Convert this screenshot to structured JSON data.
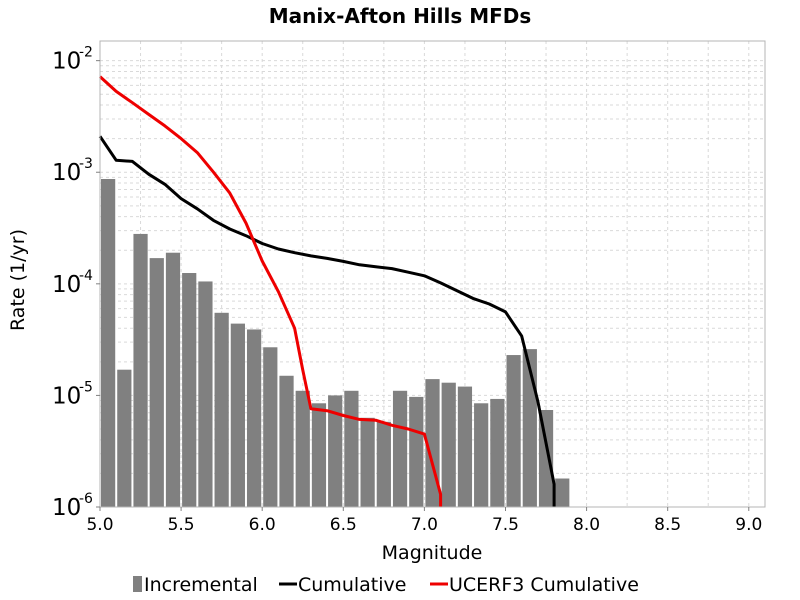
{
  "chart_data": {
    "type": "bar",
    "title": "Manix-Afton Hills MFDs",
    "xlabel": "Magnitude",
    "ylabel": "Rate (1/yr)",
    "xlim": [
      5.0,
      9.1
    ],
    "ylim": [
      1e-06,
      0.015
    ],
    "y_scale": "log",
    "grid": true,
    "legend_position": "bottom",
    "x_ticks": [
      "5.0",
      "5.5",
      "6.0",
      "6.5",
      "7.0",
      "7.5",
      "8.0",
      "8.5",
      "9.0"
    ],
    "y_ticks": [
      {
        "base": "10",
        "exp": "-2"
      },
      {
        "base": "10",
        "exp": "-3"
      },
      {
        "base": "10",
        "exp": "-4"
      },
      {
        "base": "10",
        "exp": "-5"
      },
      {
        "base": "10",
        "exp": "-6"
      }
    ],
    "series": [
      {
        "name": "Incremental",
        "type": "bar",
        "color": "#808080",
        "bin_width": 0.1,
        "x": [
          5.05,
          5.15,
          5.25,
          5.35,
          5.45,
          5.55,
          5.65,
          5.75,
          5.85,
          5.95,
          6.05,
          6.15,
          6.25,
          6.35,
          6.45,
          6.55,
          6.65,
          6.75,
          6.85,
          6.95,
          7.05,
          7.15,
          7.25,
          7.35,
          7.45,
          7.55,
          7.65,
          7.75,
          7.85
        ],
        "values": [
          0.00087,
          1.7e-05,
          0.00028,
          0.00017,
          0.00019,
          0.000125,
          0.000105,
          5.5e-05,
          4.4e-05,
          3.9e-05,
          2.7e-05,
          1.5e-05,
          1.1e-05,
          8.5e-06,
          1e-05,
          1.1e-05,
          6.3e-06,
          5.8e-06,
          1.1e-05,
          9.7e-06,
          1.4e-05,
          1.3e-05,
          1.2e-05,
          8.5e-06,
          9.3e-06,
          2.3e-05,
          2.6e-05,
          7.4e-06,
          1.8e-06
        ]
      },
      {
        "name": "Cumulative",
        "type": "line",
        "color": "#000000",
        "x": [
          5.0,
          5.1,
          5.2,
          5.3,
          5.4,
          5.5,
          5.6,
          5.7,
          5.8,
          5.9,
          6.0,
          6.1,
          6.2,
          6.3,
          6.4,
          6.5,
          6.6,
          6.7,
          6.8,
          6.9,
          7.0,
          7.1,
          7.2,
          7.3,
          7.4,
          7.5,
          7.6,
          7.7,
          7.8,
          7.8
        ],
        "values": [
          0.0021,
          0.00128,
          0.00125,
          0.00096,
          0.00078,
          0.00058,
          0.00047,
          0.00037,
          0.00031,
          0.00027,
          0.00023,
          0.000205,
          0.00019,
          0.000178,
          0.000169,
          0.000159,
          0.000148,
          0.000142,
          0.000137,
          0.000127,
          0.000118,
          0.000102,
          8.7e-05,
          7.4e-05,
          6.6e-05,
          5.6e-05,
          3.4e-05,
          8.8e-06,
          1.6e-06,
          1e-06
        ]
      },
      {
        "name": "UCERF3 Cumulative",
        "type": "line",
        "color": "#ee0000",
        "x": [
          5.0,
          5.1,
          5.2,
          5.3,
          5.4,
          5.5,
          5.6,
          5.7,
          5.8,
          5.9,
          6.0,
          6.1,
          6.2,
          6.25,
          6.3,
          6.4,
          6.5,
          6.6,
          6.7,
          6.8,
          6.9,
          7.0,
          7.1,
          7.1
        ],
        "values": [
          0.0072,
          0.0053,
          0.0042,
          0.0033,
          0.0026,
          0.002,
          0.0015,
          0.001,
          0.00065,
          0.00035,
          0.00016,
          8.5e-05,
          4e-05,
          1.7e-05,
          7.6e-06,
          7.3e-06,
          6.6e-06,
          6.1e-06,
          6e-06,
          5.4e-06,
          5e-06,
          4.5e-06,
          1.3e-06,
          1e-06
        ]
      }
    ]
  }
}
